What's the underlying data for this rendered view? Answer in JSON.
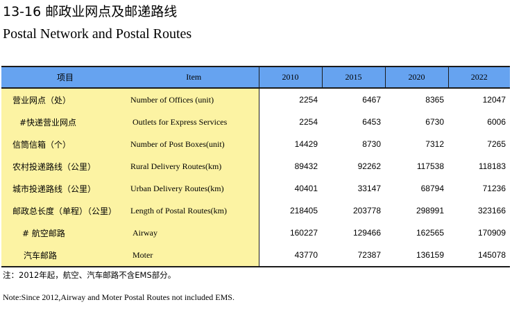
{
  "title_cn": "13-16  邮政业网点及邮递路线",
  "title_en": "Postal Network and Postal Routes",
  "headers": {
    "item_cn": "项目",
    "item_en": "Item",
    "years": [
      "2010",
      "2015",
      "2020",
      "2022"
    ]
  },
  "rows": [
    {
      "cn": "营业网点（处）",
      "en": "Number of Offices (unit)",
      "values": [
        "2254",
        "6467",
        "8365",
        "12047"
      ]
    },
    {
      "cn": "#快递营业网点",
      "en": "Outlets for Express Services",
      "values": [
        "2254",
        "6453",
        "6730",
        "6006"
      ]
    },
    {
      "cn": "信筒信箱（个）",
      "en": "Number of Post Boxes(unit)",
      "values": [
        "14429",
        "8730",
        "7312",
        "7265"
      ]
    },
    {
      "cn": "农村投递路线（公里）",
      "en": "Rural Delivery Routes(km)",
      "values": [
        "89432",
        "92262",
        "117538",
        "118183"
      ]
    },
    {
      "cn": "城市投递路线（公里）",
      "en": "Urban Delivery Routes(km)",
      "values": [
        "40401",
        "33147",
        "68794",
        "71236"
      ]
    },
    {
      "cn": "邮政总长度（单程）（公里）",
      "en": "Length of Postal Routes(km)",
      "values": [
        "218405",
        "203778",
        "298991",
        "323166"
      ]
    },
    {
      "cn": "# 航空邮路",
      "en": "Airway",
      "values": [
        "160227",
        "129466",
        "162565",
        "170909"
      ]
    },
    {
      "cn": "汽车邮路",
      "en": "Moter",
      "values": [
        "43770",
        "72387",
        "136159",
        "145078"
      ]
    }
  ],
  "note_cn": "注：2012年起，航空、汽车邮路不含EMS部分。",
  "note_en": "Note:Since 2012,Airway and Moter Postal Routes not included EMS.",
  "colors": {
    "header_bg": "#66a3f0",
    "item_bg": "#fcf3a3",
    "rule": "#1a1a1a"
  }
}
